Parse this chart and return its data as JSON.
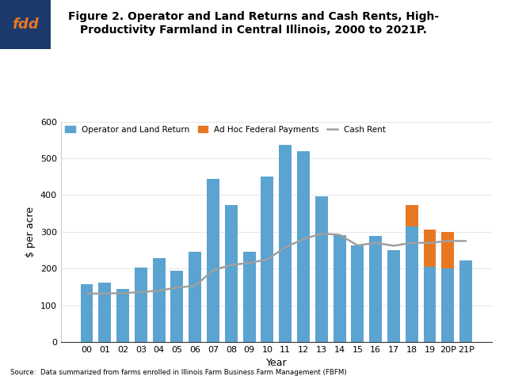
{
  "title": "Figure 2. Operator and Land Returns and Cash Rents, High-\nProductivity Farmland in Central Illinois, 2000 to 2021P.",
  "xlabel": "Year",
  "ylabel": "$ per acre",
  "source": "Source:  Data summarized from farms enrolled in Illinois Farm Business Farm Management (FBFM)",
  "years": [
    "00",
    "01",
    "02",
    "03",
    "04",
    "05",
    "06",
    "07",
    "08",
    "09",
    "10",
    "11",
    "12",
    "13",
    "14",
    "15",
    "16",
    "17",
    "18",
    "19",
    "20P",
    "21P"
  ],
  "operator_land_return": [
    157,
    162,
    144,
    203,
    228,
    195,
    245,
    444,
    373,
    245,
    450,
    537,
    520,
    396,
    291,
    263,
    289,
    249,
    315,
    205,
    200,
    222
  ],
  "adhoc_payments": [
    0,
    0,
    0,
    0,
    0,
    0,
    0,
    0,
    0,
    0,
    0,
    0,
    0,
    0,
    0,
    0,
    0,
    0,
    57,
    100,
    100,
    0
  ],
  "cash_rent": [
    132,
    132,
    133,
    136,
    140,
    148,
    153,
    195,
    210,
    215,
    225,
    258,
    280,
    295,
    292,
    263,
    270,
    262,
    270,
    270,
    275,
    275
  ],
  "bar_color": "#5BA3D0",
  "adhoc_color": "#E87722",
  "cash_rent_color": "#A0A0A0",
  "ylim": [
    0,
    600
  ],
  "yticks": [
    0,
    100,
    200,
    300,
    400,
    500,
    600
  ],
  "logo_text": "fdd",
  "logo_bg": "#1B3A6B",
  "logo_text_color": "#E87722"
}
